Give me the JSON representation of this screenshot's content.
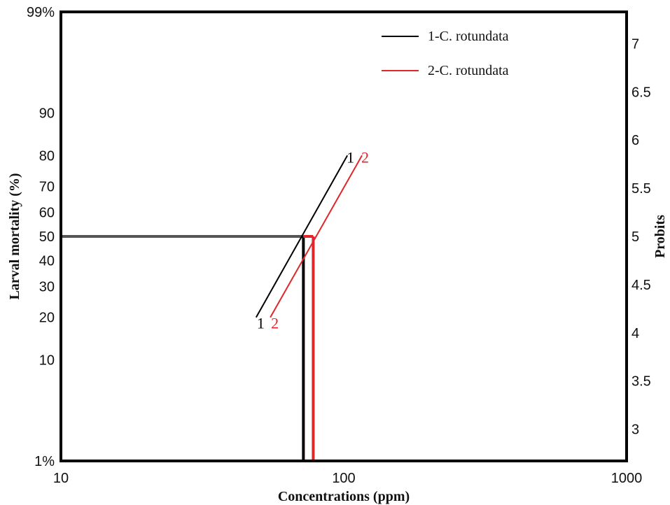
{
  "chart_data": {
    "type": "line",
    "x_scale": "log",
    "y_scale": "probit",
    "xlim": [
      10,
      1000
    ],
    "ylim_probit": [
      2.67,
      7.33
    ],
    "xlabel": "Concentrations (ppm)",
    "ylabel_left": "Larval mortality (%)",
    "ylabel_right": "Probits",
    "x_ticks": [
      {
        "value": 10,
        "label": "10"
      },
      {
        "value": 100,
        "label": "100"
      },
      {
        "value": 1000,
        "label": "1000"
      }
    ],
    "left_ticks": [
      {
        "probit": 7.33,
        "label": "99%"
      },
      {
        "probit": 6.28,
        "label": "90"
      },
      {
        "probit": 5.84,
        "label": "80"
      },
      {
        "probit": 5.52,
        "label": "70"
      },
      {
        "probit": 5.25,
        "label": "60"
      },
      {
        "probit": 5.0,
        "label": "50"
      },
      {
        "probit": 4.75,
        "label": "40"
      },
      {
        "probit": 4.48,
        "label": "30"
      },
      {
        "probit": 4.16,
        "label": "20"
      },
      {
        "probit": 3.72,
        "label": "10"
      },
      {
        "probit": 2.67,
        "label": "1%"
      }
    ],
    "right_ticks": [
      {
        "probit": 3.0,
        "label": "3"
      },
      {
        "probit": 3.5,
        "label": "3.5"
      },
      {
        "probit": 4.0,
        "label": "4"
      },
      {
        "probit": 4.5,
        "label": "4.5"
      },
      {
        "probit": 5.0,
        "label": "5"
      },
      {
        "probit": 5.5,
        "label": "5.5"
      },
      {
        "probit": 6.0,
        "label": "6"
      },
      {
        "probit": 6.5,
        "label": "6.5"
      },
      {
        "probit": 7.0,
        "label": "7"
      }
    ],
    "series": [
      {
        "name": "1-C. rotundata",
        "marker": "1",
        "color": "#000000",
        "x": [
          49,
          103
        ],
        "y_probit": [
          4.16,
          5.84
        ],
        "lc50": 72
      },
      {
        "name": "2-C. rotundata",
        "marker": "2",
        "color": "#e0262a",
        "x": [
          55,
          116
        ],
        "y_probit": [
          4.16,
          5.84
        ],
        "lc50": 78
      }
    ],
    "reference_line": {
      "probit": 5.0,
      "color": "#555555"
    },
    "legend_position": "top-right"
  }
}
